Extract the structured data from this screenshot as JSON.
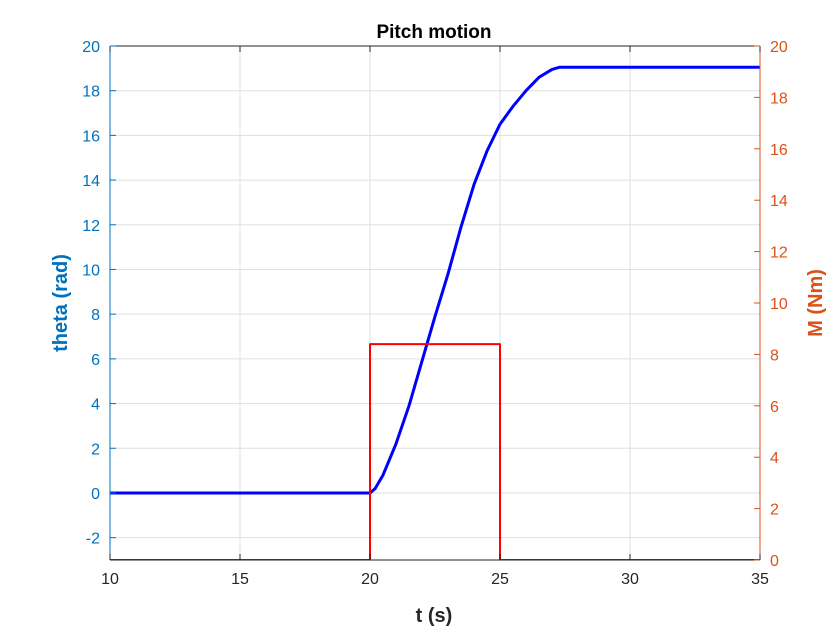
{
  "chart_data": {
    "type": "line",
    "title": "Pitch motion",
    "xlabel": "t (s)",
    "ylabel_left": "theta (rad)",
    "ylabel_right": "M (Nm)",
    "xlim": [
      10,
      35
    ],
    "ylim_left": [
      -3,
      20
    ],
    "ylim_right": [
      0,
      20
    ],
    "xticks": [
      10,
      15,
      20,
      25,
      30,
      35
    ],
    "yticks_left": [
      -2,
      0,
      2,
      4,
      6,
      8,
      10,
      12,
      14,
      16,
      18,
      20
    ],
    "yticks_right": [
      0,
      2,
      4,
      6,
      8,
      10,
      12,
      14,
      16,
      18,
      20
    ],
    "grid": true,
    "colors": {
      "left_axis": "#0072BD",
      "right_axis": "#D95319",
      "theta_line": "#0000FF",
      "moment_line": "#FF0000",
      "grid": "#DFDFDF",
      "axes_box": "#262626"
    },
    "series": [
      {
        "axis": "left",
        "color": "#0000FF",
        "x": [
          10,
          20,
          20.2,
          20.5,
          21,
          21.5,
          22,
          22.5,
          23,
          23.5,
          24,
          24.5,
          25,
          25.5,
          26,
          26.5,
          27,
          27.3,
          27.6,
          28,
          35
        ],
        "y": [
          0,
          0,
          0.2,
          0.8,
          2.2,
          3.9,
          5.9,
          7.9,
          9.8,
          11.9,
          13.8,
          15.3,
          16.5,
          17.3,
          18.0,
          18.6,
          18.95,
          19.05,
          19.05,
          19.05,
          19.05
        ]
      },
      {
        "axis": "right",
        "color": "#FF0000",
        "x": [
          10,
          20,
          20,
          25,
          25,
          35
        ],
        "y": [
          0,
          0,
          8.4,
          8.4,
          0,
          0
        ]
      }
    ]
  }
}
